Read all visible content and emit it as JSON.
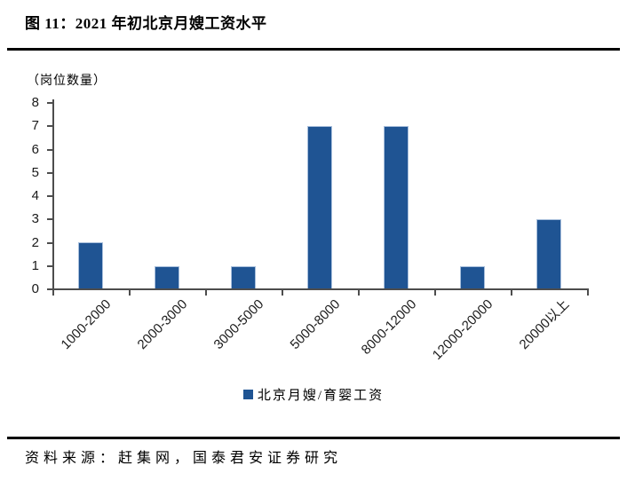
{
  "figure": {
    "title": "图 11：2021 年初北京月嫂工资水平",
    "source": "资料来源：赶集网，国泰君安证券研究"
  },
  "colors": {
    "bar": "#1f5493",
    "bar_border": "#a8bfdc",
    "axis": "#4d4d4d",
    "rule": "#000000"
  },
  "chart_data": {
    "type": "bar",
    "title": "2021 年初北京月嫂工资水平",
    "unit_label": "（岗位数量）",
    "xlabel": "",
    "ylabel": "岗位数量",
    "categories": [
      "1000-2000",
      "2000-3000",
      "3000-5000",
      "5000-8000",
      "8000-12000",
      "12000-20000",
      "20000以上"
    ],
    "values": [
      2,
      1,
      1,
      7,
      7,
      1,
      3
    ],
    "ylim": [
      0,
      8
    ],
    "ytick_step": 1,
    "grid": false,
    "legend_position": "bottom",
    "legend": [
      {
        "name": "北京月嫂/育婴工资",
        "color": "#1f5493"
      }
    ]
  }
}
